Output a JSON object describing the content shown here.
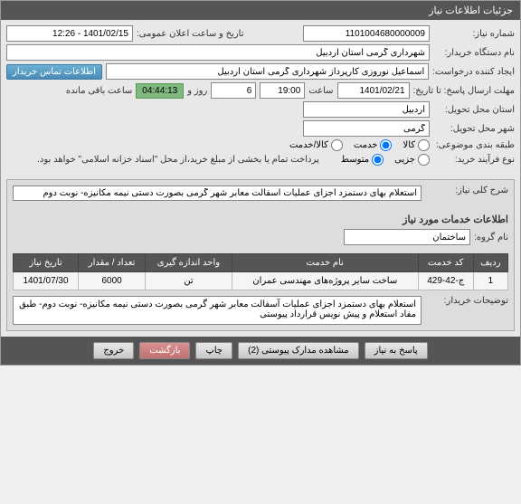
{
  "header": {
    "title": "جزئیات اطلاعات نیاز"
  },
  "form": {
    "need_number_label": "شماره نیاز:",
    "need_number": "1101004680000009",
    "announce_date_label": "تاریخ و ساعت اعلان عمومی:",
    "announce_date": "1401/02/15 - 12:26",
    "buyer_device_label": "نام دستگاه خریدار:",
    "buyer_device": "شهرداری گرمی استان اردبیل",
    "requester_label": "ایجاد کننده درخواست:",
    "requester": "اسماعیل نوروزی کارپرداز شهرداری گرمی استان اردبیل",
    "contact_btn": "اطلاعات تماس خریدار",
    "deadline_label": "مهلت ارسال پاسخ: تا تاریخ:",
    "deadline_date": "1401/02/21",
    "time_label": "ساعت",
    "deadline_time": "19:00",
    "day_label": "روز و",
    "days_remaining": "6",
    "countdown": "04:44:13",
    "remaining_text": "ساعت باقی مانده",
    "province_label": "استان محل تحویل:",
    "province": "اردبیل",
    "city_label": "شهر محل تحویل:",
    "city": "گرمی",
    "category_label": "طبقه بندی موضوعی:",
    "cat_goods": "کالا",
    "cat_service": "خدمت",
    "cat_goods_service": "کالا/خدمت",
    "contract_label": "نوع فرآیند خرید:",
    "contract_partial": "جزیی",
    "contract_medium": "متوسط",
    "payment_note": "پرداخت تمام یا بخشی از مبلغ خرید،از محل \"اسناد خزانه اسلامی\" خواهد بود."
  },
  "description": {
    "label": "شرح کلی نیاز:",
    "text": "استعلام بهای دستمزد اجزای عملیات آسفالت معابر شهر گرمی بصورت دستی نیمه مکانیزه- نوبت دوم"
  },
  "services_section": {
    "title": "اطلاعات خدمات مورد نیاز",
    "group_label": "نام گروه:",
    "group_value": "ساختمان"
  },
  "table": {
    "headers": {
      "row": "ردیف",
      "service_code": "کد خدمت",
      "service_name": "نام خدمت",
      "unit": "واحد اندازه گیری",
      "qty": "تعداد / مقدار",
      "need_date": "تاریخ نیاز"
    },
    "rows": [
      {
        "row": "1",
        "service_code": "ج-42-429",
        "service_name": "ساخت سایر پروژه‌های مهندسی عمران",
        "unit": "تن",
        "qty": "6000",
        "need_date": "1401/07/30"
      }
    ]
  },
  "buyer_notes": {
    "label": "توضیحات خریدار:",
    "text": "استعلام بهای دستمزد اجزای عملیات آسفالت معابر شهر گرمی بصورت دستی نیمه مکانیزه- نوبت دوم- طبق مفاد استعلام و پیش نویس قرارداد پیوستی"
  },
  "footer": {
    "respond": "پاسخ به نیاز",
    "attachments": "مشاهده مدارک پیوستی (2)",
    "print": "چاپ",
    "back": "بازگشت",
    "exit": "خروج"
  }
}
